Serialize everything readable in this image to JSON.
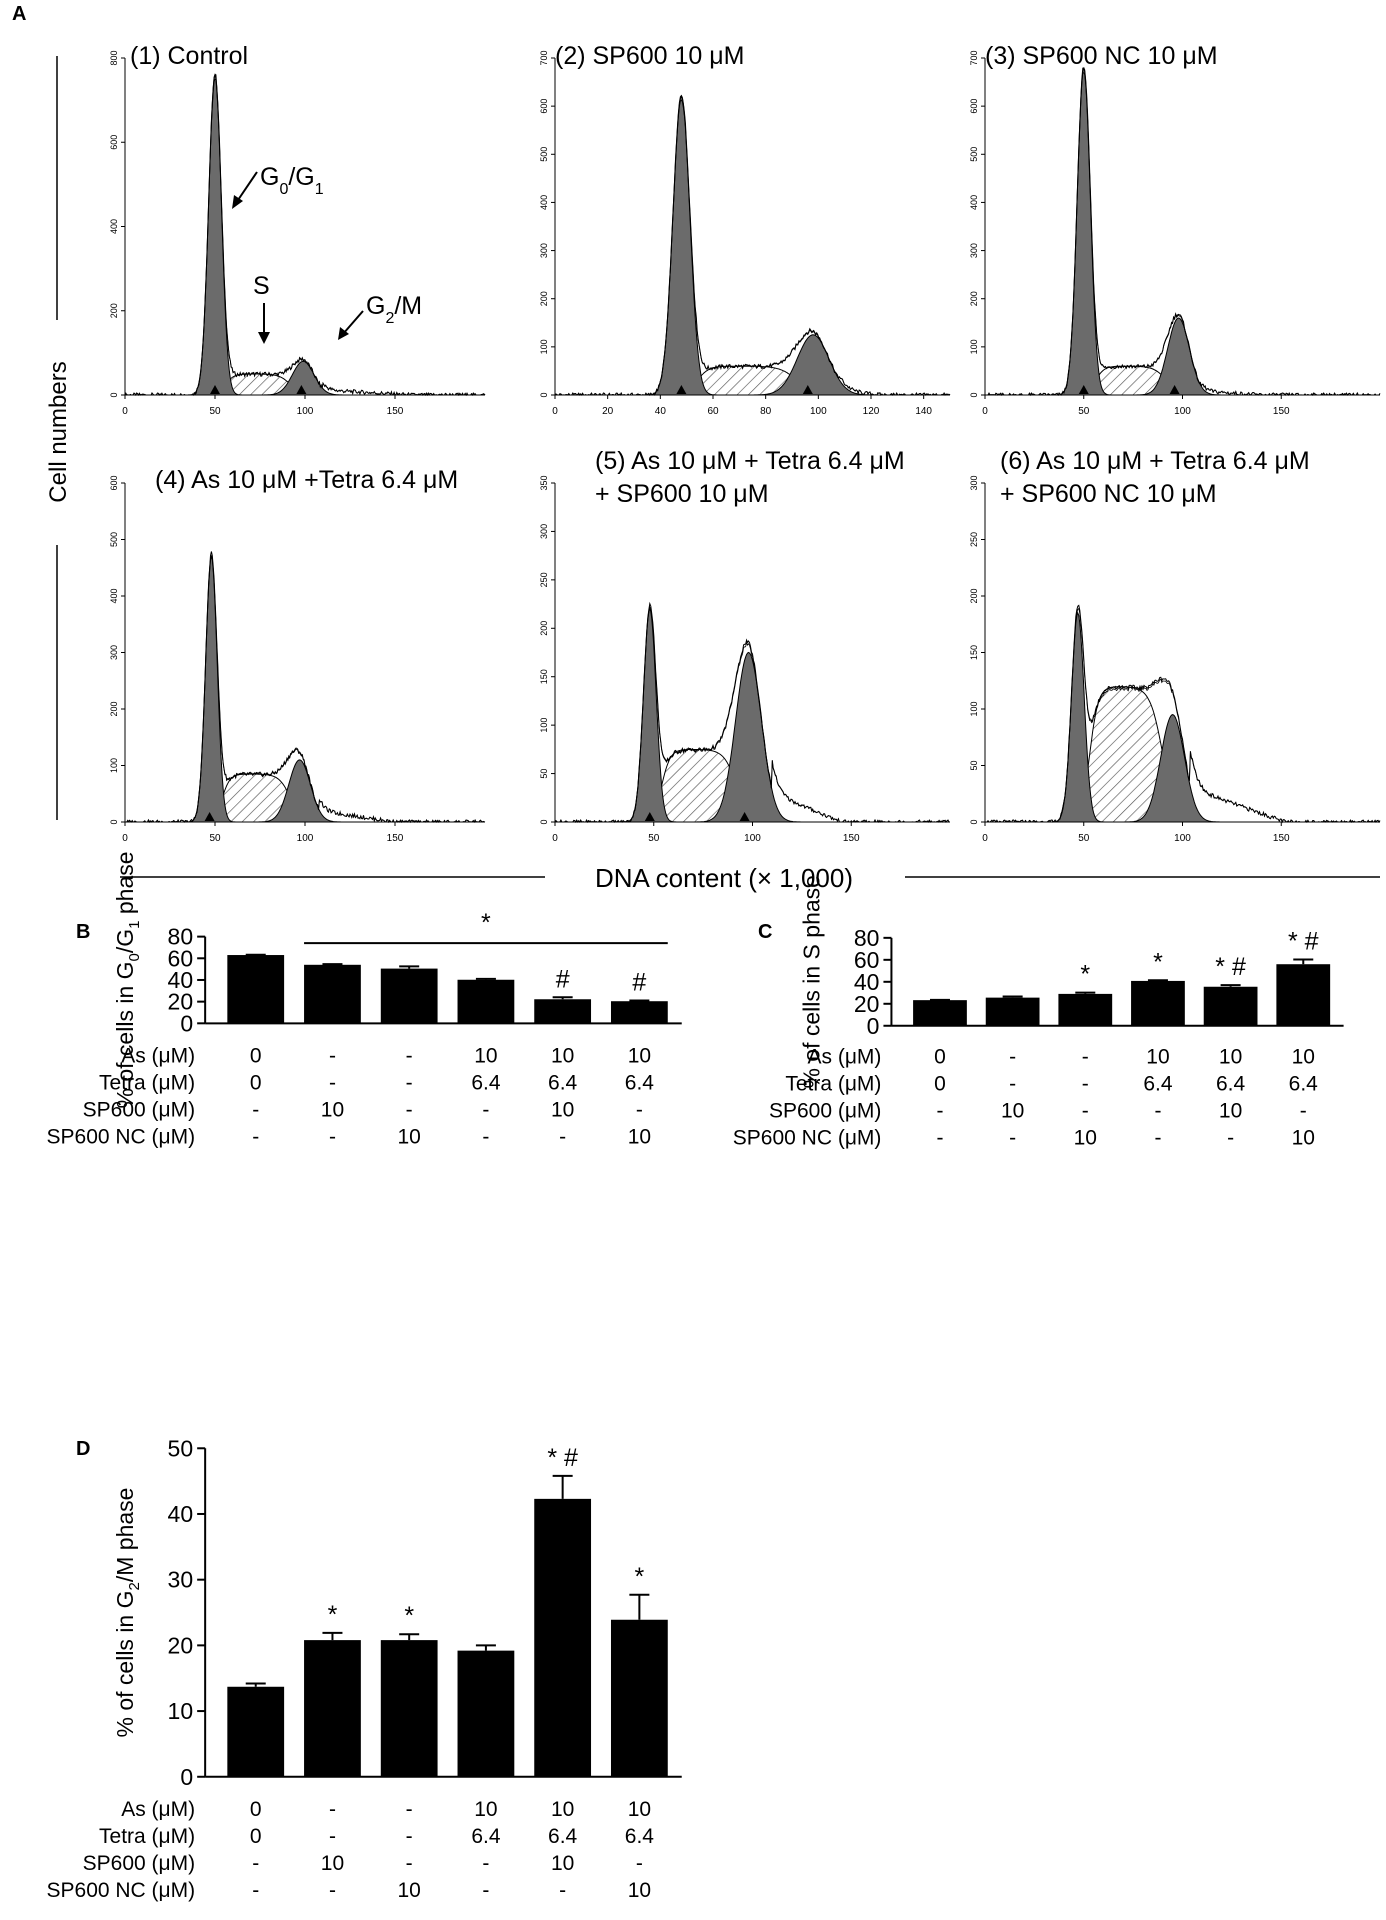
{
  "panel_letters": {
    "A": "A",
    "B": "B",
    "C": "C",
    "D": "D"
  },
  "colors": {
    "ink": "#000000",
    "peak_fill": "#6b6b6b",
    "hatch": "#555555",
    "bar": "#000000"
  },
  "panel_a": {
    "y_label": "Cell numbers",
    "x_label": "DNA content (× 1,000)",
    "peak_labels": {
      "g0g1": "G0/G1",
      "s": "S",
      "g2m": "G2/M"
    }
  },
  "chart_data": [
    {
      "id": "A1",
      "type": "histogram",
      "title": "(1) Control",
      "x": {
        "min": 0,
        "max": 200,
        "ticks": [
          0,
          50,
          100,
          150
        ]
      },
      "y": {
        "min": 0,
        "max": 800,
        "ticks": [
          0,
          200,
          400,
          600,
          800
        ]
      },
      "g1": {
        "mean": 50,
        "sd": 3.5,
        "height": 760
      },
      "s": {
        "lo": 56,
        "hi": 92,
        "height": 50
      },
      "g2": {
        "mean": 99,
        "sd": 6,
        "height": 80
      },
      "markers": [
        50,
        98
      ],
      "tail": {
        "start": 110,
        "end": 160,
        "level": 12
      }
    },
    {
      "id": "A2",
      "type": "histogram",
      "title": "(2) SP600 10 μM",
      "x": {
        "min": 0,
        "max": 150,
        "ticks": [
          0,
          20,
          40,
          60,
          80,
          100,
          120,
          140
        ]
      },
      "y": {
        "min": 0,
        "max": 700,
        "ticks": [
          0,
          100,
          200,
          300,
          400,
          500,
          600,
          700
        ]
      },
      "g1": {
        "mean": 48,
        "sd": 3.2,
        "height": 620
      },
      "s": {
        "lo": 54,
        "hi": 92,
        "height": 60
      },
      "g2": {
        "mean": 98,
        "sd": 6,
        "height": 125
      },
      "markers": [
        48,
        96
      ],
      "tail": {
        "start": 108,
        "end": 125,
        "level": 8
      }
    },
    {
      "id": "A3",
      "type": "histogram",
      "title": "(3) SP600 NC 10 μM",
      "x": {
        "min": 0,
        "max": 200,
        "ticks": [
          0,
          50,
          100,
          150
        ]
      },
      "y": {
        "min": 0,
        "max": 700,
        "ticks": [
          0,
          100,
          200,
          300,
          400,
          500,
          600,
          700
        ]
      },
      "g1": {
        "mean": 50,
        "sd": 3.3,
        "height": 680
      },
      "s": {
        "lo": 56,
        "hi": 92,
        "height": 60
      },
      "g2": {
        "mean": 98,
        "sd": 5.5,
        "height": 160
      },
      "markers": [
        50,
        96
      ],
      "tail": {
        "start": 110,
        "end": 140,
        "level": 8
      }
    },
    {
      "id": "A4",
      "type": "histogram",
      "title": "(4) As 10 μM +Tetra 6.4 μM",
      "x": {
        "min": 0,
        "max": 200,
        "ticks": [
          0,
          50,
          100,
          150
        ]
      },
      "y": {
        "min": 0,
        "max": 600,
        "ticks": [
          0,
          100,
          200,
          300,
          400,
          500,
          600
        ]
      },
      "g1": {
        "mean": 48,
        "sd": 3.2,
        "height": 470
      },
      "s": {
        "lo": 54,
        "hi": 92,
        "height": 85
      },
      "g2": {
        "mean": 97,
        "sd": 6,
        "height": 110
      },
      "markers": [
        47
      ],
      "tail": {
        "start": 108,
        "end": 150,
        "level": 20
      }
    },
    {
      "id": "A5",
      "type": "histogram",
      "title": "(5) As 10 μM + Tetra 6.4 μM",
      "title2": "+ SP600 10 μM",
      "x": {
        "min": 0,
        "max": 200,
        "ticks": [
          0,
          50,
          100,
          150
        ]
      },
      "y": {
        "min": 0,
        "max": 350,
        "ticks": [
          0,
          50,
          100,
          150,
          200,
          250,
          300,
          350
        ]
      },
      "g1": {
        "mean": 48,
        "sd": 3.2,
        "height": 220
      },
      "s": {
        "lo": 54,
        "hi": 92,
        "height": 75
      },
      "g2": {
        "mean": 98,
        "sd": 6.5,
        "height": 175
      },
      "markers": [
        48,
        96
      ],
      "tail": {
        "start": 110,
        "end": 145,
        "level": 30
      }
    },
    {
      "id": "A6",
      "type": "histogram",
      "title": "(6) As 10 μM + Tetra 6.4 μM",
      "title2": "+ SP600 NC 10 μM",
      "x": {
        "min": 0,
        "max": 200,
        "ticks": [
          0,
          50,
          100,
          150
        ]
      },
      "y": {
        "min": 0,
        "max": 300,
        "ticks": [
          0,
          50,
          100,
          150,
          200,
          250,
          300
        ]
      },
      "g1": {
        "mean": 47,
        "sd": 3.2,
        "height": 185
      },
      "s": {
        "lo": 53,
        "hi": 90,
        "height": 120
      },
      "g2": {
        "mean": 95,
        "sd": 6,
        "height": 95
      },
      "markers": [],
      "tail": {
        "start": 104,
        "end": 152,
        "level": 30
      }
    },
    {
      "id": "B",
      "type": "bar",
      "ylabel_parts": [
        "% of cells in G",
        "0",
        "/G",
        "1",
        " phase"
      ],
      "ylim": [
        0,
        80
      ],
      "yticks": [
        0,
        20,
        40,
        60,
        80
      ],
      "values": [
        63,
        54,
        50.5,
        40.2,
        22.2,
        20.4
      ],
      "errors": [
        0.3,
        0.6,
        2,
        0.8,
        1.8,
        0.6
      ],
      "marks": [
        "",
        "",
        "",
        "",
        "#",
        "#"
      ],
      "bracket": {
        "from": 1,
        "to": 5,
        "value": 74,
        "label": "*"
      }
    },
    {
      "id": "C",
      "type": "bar",
      "ylabel_parts": [
        "% of cells in S phase"
      ],
      "ylim": [
        0,
        80
      ],
      "yticks": [
        0,
        20,
        40,
        60,
        80
      ],
      "values": [
        23.3,
        25.6,
        29,
        40.8,
        35.5,
        56
      ],
      "errors": [
        0.3,
        1,
        1.2,
        0.6,
        1.5,
        4.3
      ],
      "marks": [
        "",
        "",
        "*",
        "*",
        "* #",
        "* #"
      ]
    },
    {
      "id": "D",
      "type": "bar",
      "ylabel_parts": [
        "% of cells in G",
        "2",
        "/M phase"
      ],
      "ylim": [
        0,
        50
      ],
      "yticks": [
        0,
        10,
        20,
        30,
        40,
        50
      ],
      "values": [
        13.7,
        20.8,
        20.8,
        19.2,
        42.3,
        23.9
      ],
      "errors": [
        0.5,
        1.1,
        0.9,
        0.8,
        3.5,
        3.8
      ],
      "marks": [
        "",
        "*",
        "*",
        "",
        "* #",
        "*"
      ]
    }
  ],
  "conditions": {
    "row_labels": [
      "As (μM)",
      "Tetra (μM)",
      "SP600 (μM)",
      "SP600 NC (μM)"
    ],
    "rows": [
      [
        "0",
        "-",
        "-",
        "10",
        "10",
        "10"
      ],
      [
        "0",
        "-",
        "-",
        "6.4",
        "6.4",
        "6.4"
      ],
      [
        "-",
        "10",
        "-",
        "-",
        "10",
        "-"
      ],
      [
        "-",
        "-",
        "10",
        "-",
        "-",
        "10"
      ]
    ]
  }
}
